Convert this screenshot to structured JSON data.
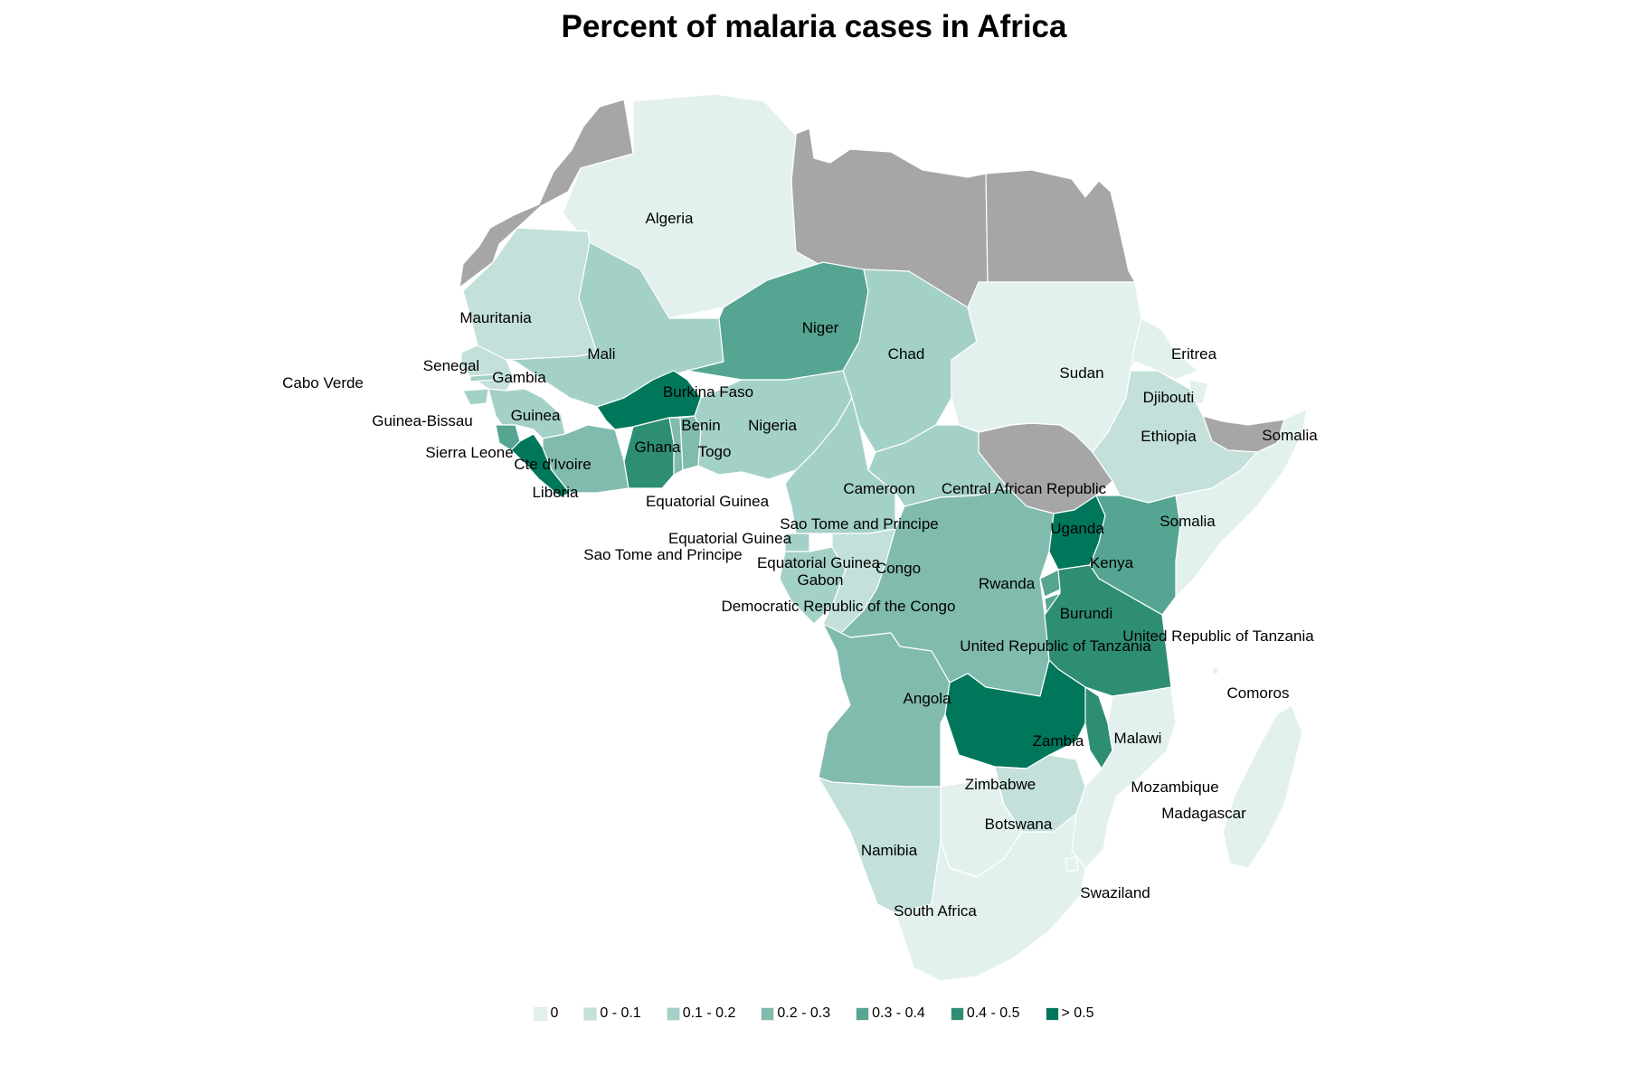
{
  "title": "Percent of malaria cases in Africa",
  "colors": {
    "0": "#e3f1ee",
    "0-0.1": "#c3e0da",
    "0.1-0.2": "#a4d1c7",
    "0.2-0.3": "#80bbae",
    "0.3-0.4": "#55a592",
    "0.4-0.5": "#2e8e74",
    "gt0.5": "#00775b",
    "nodata": "#a6a6a6"
  },
  "legend": [
    {
      "key": "0",
      "label": "0"
    },
    {
      "key": "0-0.1",
      "label": "0 - 0.1"
    },
    {
      "key": "0.1-0.2",
      "label": "0.1 - 0.2"
    },
    {
      "key": "0.2-0.3",
      "label": "0.2 - 0.3"
    },
    {
      "key": "0.3-0.4",
      "label": "0.3 - 0.4"
    },
    {
      "key": "0.4-0.5",
      "label": "0.4 - 0.5"
    },
    {
      "key": "gt0.5",
      "label": "> 0.5"
    }
  ],
  "labels": {
    "algeria": "Algeria",
    "mauritania": "Mauritania",
    "mali": "Mali",
    "niger": "Niger",
    "chad": "Chad",
    "sudan": "Sudan",
    "eritrea": "Eritrea",
    "djibouti": "Djibouti",
    "somalia_n": "Somalia",
    "ethiopia": "Ethiopia",
    "somalia_s": "Somalia",
    "senegal": "Senegal",
    "gambia": "Gambia",
    "cabo_verde": "Cabo Verde",
    "burkina": "Burkina Faso",
    "guinea_bissau": "Guinea-Bissau",
    "guinea": "Guinea",
    "benin": "Benin",
    "nigeria": "Nigeria",
    "sierra_leone": "Sierra Leone",
    "ghana": "Ghana",
    "cote": "Cte d'Ivoire",
    "togo": "Togo",
    "liberia": "Liberia",
    "eq_guinea_1": "Equatorial Guinea",
    "cameroon": "Cameroon",
    "car": "Central African Republic",
    "uganda": "Uganda",
    "stp_1": "Sao Tome and Principe",
    "eq_guinea_2": "Equatorial Guinea",
    "stp_2": "Sao Tome and Principe",
    "kenya": "Kenya",
    "eq_guinea_3": "Equatorial Guinea",
    "congo": "Congo",
    "gabon": "Gabon",
    "rwanda": "Rwanda",
    "drc": "Democratic Republic of the Congo",
    "burundi": "Burundi",
    "tanzania_1": "United Republic of Tanzania",
    "tanzania_2": "United Republic of Tanzania",
    "comoros": "Comoros",
    "angola": "Angola",
    "malawi": "Malawi",
    "zambia": "Zambia",
    "zimbabwe": "Zimbabwe",
    "mozambique": "Mozambique",
    "madagascar": "Madagascar",
    "botswana": "Botswana",
    "namibia": "Namibia",
    "swaziland": "Swaziland",
    "south_africa": "South Africa"
  }
}
